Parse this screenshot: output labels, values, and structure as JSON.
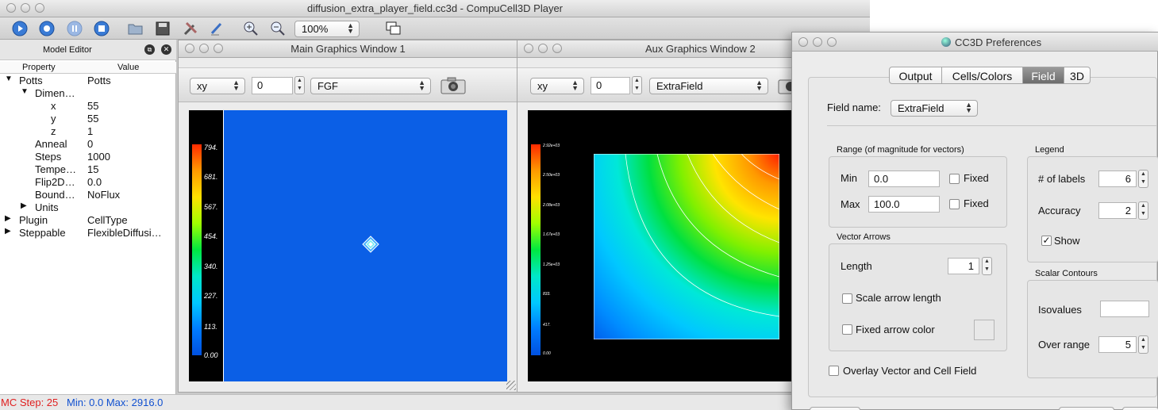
{
  "main_window": {
    "title": "diffusion_extra_player_field.cc3d - CompuCell3D Player",
    "zoom": "100%"
  },
  "model_editor": {
    "title": "Model Editor",
    "col_property": "Property",
    "col_value": "Value",
    "rows": [
      {
        "prop": "Potts",
        "value": "Potts"
      },
      {
        "prop": "Dimen…",
        "value": ""
      },
      {
        "prop": "x",
        "value": "55"
      },
      {
        "prop": "y",
        "value": "55"
      },
      {
        "prop": "z",
        "value": "1"
      },
      {
        "prop": "Anneal",
        "value": "0"
      },
      {
        "prop": "Steps",
        "value": "1000"
      },
      {
        "prop": "Tempe…",
        "value": "15"
      },
      {
        "prop": "Flip2D…",
        "value": "0.0"
      },
      {
        "prop": "Bound…",
        "value": "NoFlux"
      },
      {
        "prop": "Units",
        "value": ""
      },
      {
        "prop": "Plugin",
        "value": "CellType"
      },
      {
        "prop": "Steppable",
        "value": "FlexibleDiffusi…"
      }
    ]
  },
  "graphics1": {
    "title": "Main Graphics Window 1",
    "plane": "xy",
    "pos": "0",
    "field": "FGF",
    "colorbar": [
      "794.",
      "681.",
      "567.",
      "454.",
      "340.",
      "227.",
      "113.",
      "0.00"
    ]
  },
  "graphics2": {
    "title": "Aux Graphics Window 2",
    "plane": "xy",
    "pos": "0",
    "field": "ExtraField",
    "colorbar": [
      "2.92e+03",
      "2.50e+03",
      "2.08e+03",
      "1.67e+03",
      "1.25e+03",
      "833.",
      "417.",
      "0.00"
    ]
  },
  "status": {
    "step": "MC Step: 25",
    "minmax": "Min: 0.0 Max: 2916.0"
  },
  "preferences": {
    "title": "CC3D Preferences",
    "tabs": [
      "Output",
      "Cells/Colors",
      "Field",
      "3D"
    ],
    "active_tab": "Field",
    "field_name_label": "Field name:",
    "field_name": "ExtraField",
    "range": {
      "title": "Range (of magnitude for vectors)",
      "min_label": "Min",
      "min": "0.0",
      "max_label": "Max",
      "max": "100.0",
      "fixed_label": "Fixed"
    },
    "legend": {
      "title": "Legend",
      "labels_label": "# of labels",
      "labels": "6",
      "accuracy_label": "Accuracy",
      "accuracy": "2",
      "show_label": "Show"
    },
    "vectors": {
      "title": "Vector Arrows",
      "length_label": "Length",
      "length": "1",
      "scale_label": "Scale arrow length",
      "fixed_color_label": "Fixed arrow color"
    },
    "contours": {
      "title": "Scalar Contours",
      "isovalues_label": "Isovalues",
      "isovalues": "",
      "overrange_label": "Over range",
      "overrange": "5"
    },
    "overlay_label": "Overlay Vector and Cell Field"
  }
}
